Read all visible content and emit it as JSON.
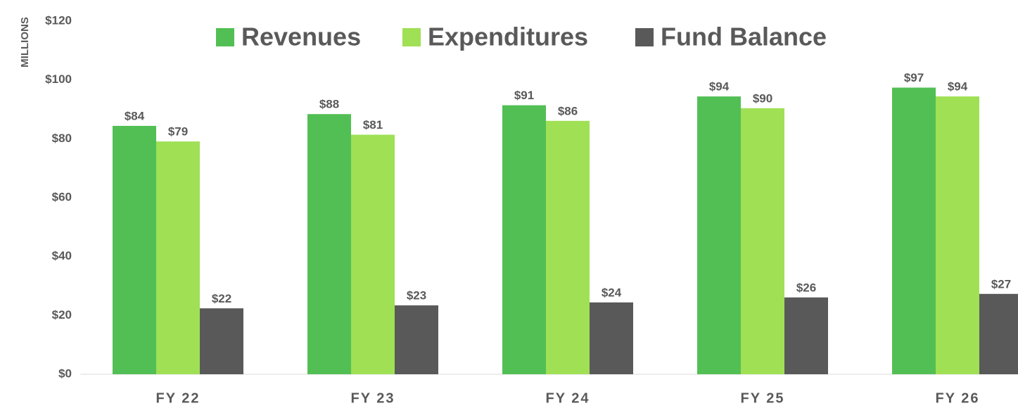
{
  "chart_data": {
    "type": "bar",
    "y_axis_label": "MILLIONS",
    "categories": [
      "FY 22",
      "FY 23",
      "FY 24",
      "FY 25",
      "FY 26"
    ],
    "series": [
      {
        "name": "Revenues",
        "color": "#52bf55",
        "values": [
          84.4,
          88.4,
          91.4,
          94.4,
          97.4
        ],
        "value_labels": [
          "$84",
          "$88",
          "$91",
          "$94",
          "$97"
        ]
      },
      {
        "name": "Expenditures",
        "color": "#9fe055",
        "values": [
          79.1,
          81.4,
          86.1,
          90.4,
          94.4
        ],
        "value_labels": [
          "$79",
          "$81",
          "$86",
          "$90",
          "$94"
        ]
      },
      {
        "name": "Fund Balance",
        "color": "#595959",
        "values": [
          22.4,
          23.4,
          24.4,
          26.1,
          27.3
        ],
        "value_labels": [
          "$22",
          "$23",
          "$24",
          "$26",
          "$27"
        ]
      }
    ],
    "ylim": [
      0,
      120
    ],
    "yticks": [
      {
        "value": 0,
        "label": "$0"
      },
      {
        "value": 20,
        "label": "$20"
      },
      {
        "value": 40,
        "label": "$40"
      },
      {
        "value": 60,
        "label": "$60"
      },
      {
        "value": 80,
        "label": "$80"
      },
      {
        "value": 100,
        "label": "$100"
      },
      {
        "value": 120,
        "label": "$120"
      }
    ],
    "grid": false,
    "legend": "top"
  }
}
